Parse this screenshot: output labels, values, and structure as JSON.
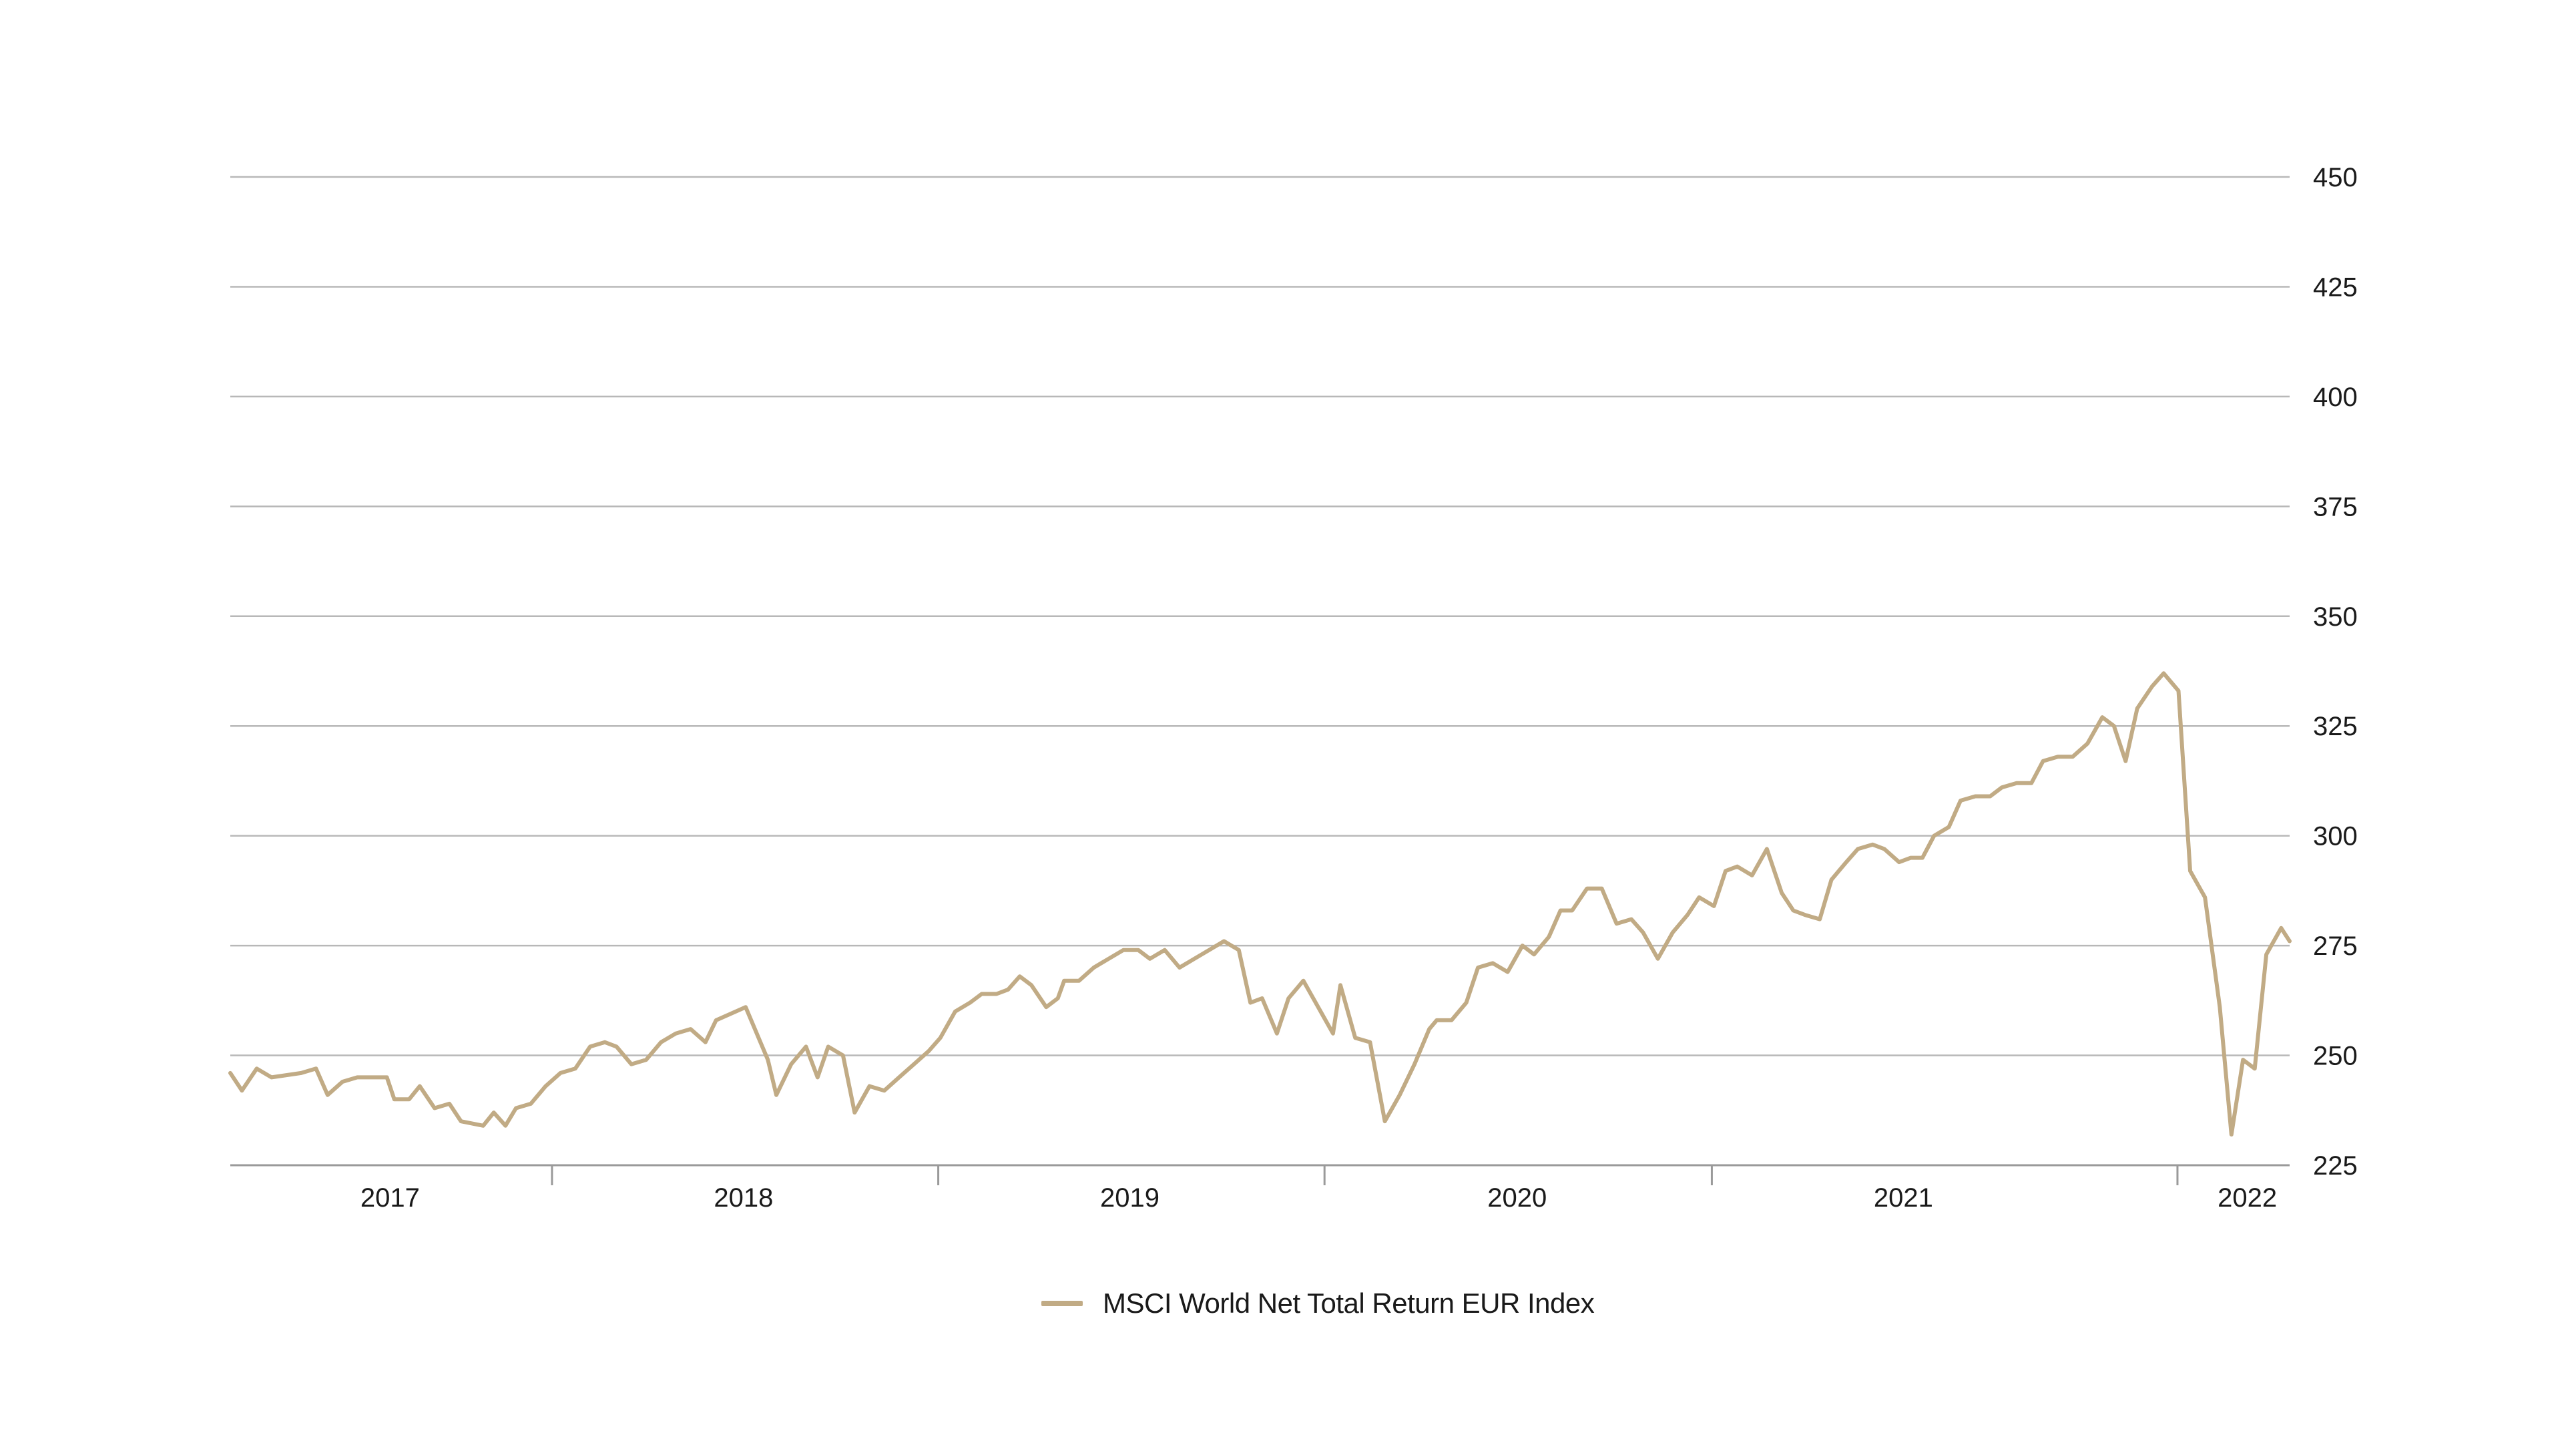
{
  "colors": {
    "series": "#c1ab85",
    "grid": "#b8b8b8",
    "axis": "#9a9a9a",
    "text": "#1a1a1a"
  },
  "legend": {
    "label": "MSCI World Net Total Return EUR Index"
  },
  "chart_data": {
    "type": "line",
    "title": "",
    "xlabel": "",
    "ylabel": "",
    "y_axis_position": "right",
    "grid": "horizontal",
    "legend_position": "bottom-center",
    "ylim": [
      225,
      450
    ],
    "yticks": [
      225,
      250,
      275,
      300,
      325,
      350,
      375,
      400,
      425,
      450
    ],
    "ytick_labels": [
      "225",
      "250",
      "275",
      "300",
      "325",
      "350",
      "375",
      "400",
      "425",
      "450"
    ],
    "xlim": [
      "2016-11-01",
      "2022-03-01"
    ],
    "x_year_labels": [
      {
        "label": "2017",
        "center": "2017-04-01"
      },
      {
        "label": "2018",
        "center": "2018-03-01"
      },
      {
        "label": "2019",
        "center": "2019-03-01"
      },
      {
        "label": "2020",
        "center": "2020-03-01"
      },
      {
        "label": "2021",
        "center": "2021-03-01"
      },
      {
        "label": "2022",
        "center": "2022-01-20"
      }
    ],
    "x_separators": [
      "2017-09-01",
      "2018-09-01",
      "2019-09-01",
      "2020-09-01",
      "2021-11-15"
    ],
    "series": [
      {
        "name": "MSCI World Net Total Return EUR Index",
        "points": [
          [
            "2016-11-01",
            246
          ],
          [
            "2016-11-12",
            242
          ],
          [
            "2016-11-26",
            247
          ],
          [
            "2016-12-10",
            245
          ],
          [
            "2017-01-07",
            246
          ],
          [
            "2017-01-21",
            247
          ],
          [
            "2017-02-01",
            241
          ],
          [
            "2017-02-15",
            244
          ],
          [
            "2017-03-01",
            245
          ],
          [
            "2017-03-29",
            245
          ],
          [
            "2017-04-05",
            240
          ],
          [
            "2017-04-19",
            240
          ],
          [
            "2017-04-29",
            243
          ],
          [
            "2017-05-13",
            238
          ],
          [
            "2017-05-27",
            239
          ],
          [
            "2017-06-07",
            235
          ],
          [
            "2017-06-28",
            234
          ],
          [
            "2017-07-08",
            237
          ],
          [
            "2017-07-19",
            234
          ],
          [
            "2017-07-29",
            238
          ],
          [
            "2017-08-12",
            239
          ],
          [
            "2017-08-26",
            243
          ],
          [
            "2017-09-09",
            246
          ],
          [
            "2017-09-23",
            247
          ],
          [
            "2017-10-07",
            252
          ],
          [
            "2017-10-21",
            253
          ],
          [
            "2017-11-01",
            252
          ],
          [
            "2017-11-15",
            248
          ],
          [
            "2017-11-29",
            249
          ],
          [
            "2017-12-13",
            253
          ],
          [
            "2017-12-27",
            255
          ],
          [
            "2018-01-10",
            256
          ],
          [
            "2018-01-24",
            253
          ],
          [
            "2018-02-03",
            258
          ],
          [
            "2018-03-03",
            261
          ],
          [
            "2018-03-24",
            249
          ],
          [
            "2018-04-01",
            241
          ],
          [
            "2018-04-15",
            248
          ],
          [
            "2018-04-29",
            252
          ],
          [
            "2018-05-10",
            245
          ],
          [
            "2018-05-20",
            252
          ],
          [
            "2018-06-03",
            250
          ],
          [
            "2018-06-14",
            237
          ],
          [
            "2018-06-28",
            243
          ],
          [
            "2018-07-12",
            242
          ],
          [
            "2018-07-26",
            245
          ],
          [
            "2018-08-09",
            248
          ],
          [
            "2018-08-23",
            251
          ],
          [
            "2018-09-03",
            254
          ],
          [
            "2018-09-17",
            260
          ],
          [
            "2018-10-01",
            262
          ],
          [
            "2018-10-12",
            264
          ],
          [
            "2018-10-26",
            264
          ],
          [
            "2018-11-06",
            265
          ],
          [
            "2018-11-17",
            268
          ],
          [
            "2018-11-28",
            266
          ],
          [
            "2018-12-12",
            261
          ],
          [
            "2018-12-23",
            263
          ],
          [
            "2018-12-29",
            267
          ],
          [
            "2019-01-12",
            267
          ],
          [
            "2019-01-26",
            270
          ],
          [
            "2019-02-09",
            272
          ],
          [
            "2019-02-23",
            274
          ],
          [
            "2019-03-09",
            274
          ],
          [
            "2019-03-20",
            272
          ],
          [
            "2019-04-03",
            274
          ],
          [
            "2019-04-17",
            270
          ],
          [
            "2019-05-01",
            272
          ],
          [
            "2019-05-15",
            274
          ],
          [
            "2019-05-29",
            276
          ],
          [
            "2019-06-12",
            274
          ],
          [
            "2019-06-23",
            262
          ],
          [
            "2019-07-04",
            263
          ],
          [
            "2019-07-18",
            255
          ],
          [
            "2019-07-29",
            263
          ],
          [
            "2019-08-12",
            267
          ],
          [
            "2019-08-26",
            261
          ],
          [
            "2019-09-09",
            255
          ],
          [
            "2019-09-16",
            266
          ],
          [
            "2019-09-30",
            254
          ],
          [
            "2019-10-14",
            253
          ],
          [
            "2019-10-28",
            235
          ],
          [
            "2019-11-11",
            241
          ],
          [
            "2019-11-25",
            248
          ],
          [
            "2019-12-09",
            256
          ],
          [
            "2019-12-16",
            258
          ],
          [
            "2019-12-30",
            258
          ],
          [
            "2020-01-13",
            262
          ],
          [
            "2020-01-24",
            270
          ],
          [
            "2020-02-07",
            271
          ],
          [
            "2020-02-21",
            269
          ],
          [
            "2020-03-06",
            275
          ],
          [
            "2020-03-17",
            273
          ],
          [
            "2020-03-31",
            277
          ],
          [
            "2020-04-11",
            283
          ],
          [
            "2020-04-22",
            283
          ],
          [
            "2020-05-06",
            288
          ],
          [
            "2020-05-20",
            288
          ],
          [
            "2020-06-03",
            280
          ],
          [
            "2020-06-17",
            281
          ],
          [
            "2020-06-28",
            278
          ],
          [
            "2020-07-12",
            272
          ],
          [
            "2020-07-26",
            278
          ],
          [
            "2020-08-09",
            282
          ],
          [
            "2020-08-20",
            286
          ],
          [
            "2020-09-03",
            284
          ],
          [
            "2020-09-14",
            292
          ],
          [
            "2020-09-25",
            293
          ],
          [
            "2020-10-09",
            291
          ],
          [
            "2020-10-23",
            297
          ],
          [
            "2020-11-06",
            287
          ],
          [
            "2020-11-17",
            283
          ],
          [
            "2020-11-28",
            282
          ],
          [
            "2020-12-12",
            281
          ],
          [
            "2020-12-23",
            290
          ],
          [
            "2021-01-06",
            294
          ],
          [
            "2021-01-17",
            297
          ],
          [
            "2021-01-31",
            298
          ],
          [
            "2021-02-11",
            297
          ],
          [
            "2021-02-25",
            294
          ],
          [
            "2021-03-08",
            295
          ],
          [
            "2021-03-19",
            295
          ],
          [
            "2021-03-30",
            300
          ],
          [
            "2021-04-13",
            302
          ],
          [
            "2021-04-24",
            308
          ],
          [
            "2021-05-08",
            309
          ],
          [
            "2021-05-22",
            309
          ],
          [
            "2021-06-02",
            311
          ],
          [
            "2021-06-16",
            312
          ],
          [
            "2021-06-30",
            312
          ],
          [
            "2021-07-11",
            317
          ],
          [
            "2021-07-25",
            318
          ],
          [
            "2021-08-08",
            318
          ],
          [
            "2021-08-22",
            321
          ],
          [
            "2021-09-05",
            327
          ],
          [
            "2021-09-16",
            325
          ],
          [
            "2021-09-27",
            317
          ],
          [
            "2021-10-08",
            329
          ],
          [
            "2021-10-22",
            334
          ],
          [
            "2021-11-02",
            337
          ],
          [
            "2021-11-16",
            333
          ],
          [
            "2021-11-27",
            292
          ],
          [
            "2021-12-11",
            286
          ],
          [
            "2021-12-25",
            261
          ],
          [
            "2022-01-05",
            232
          ],
          [
            "2022-01-16",
            249
          ],
          [
            "2022-01-27",
            247
          ],
          [
            "2022-02-07",
            273
          ],
          [
            "2022-02-21",
            279
          ],
          [
            "2022-03-01",
            276
          ]
        ]
      }
    ]
  }
}
